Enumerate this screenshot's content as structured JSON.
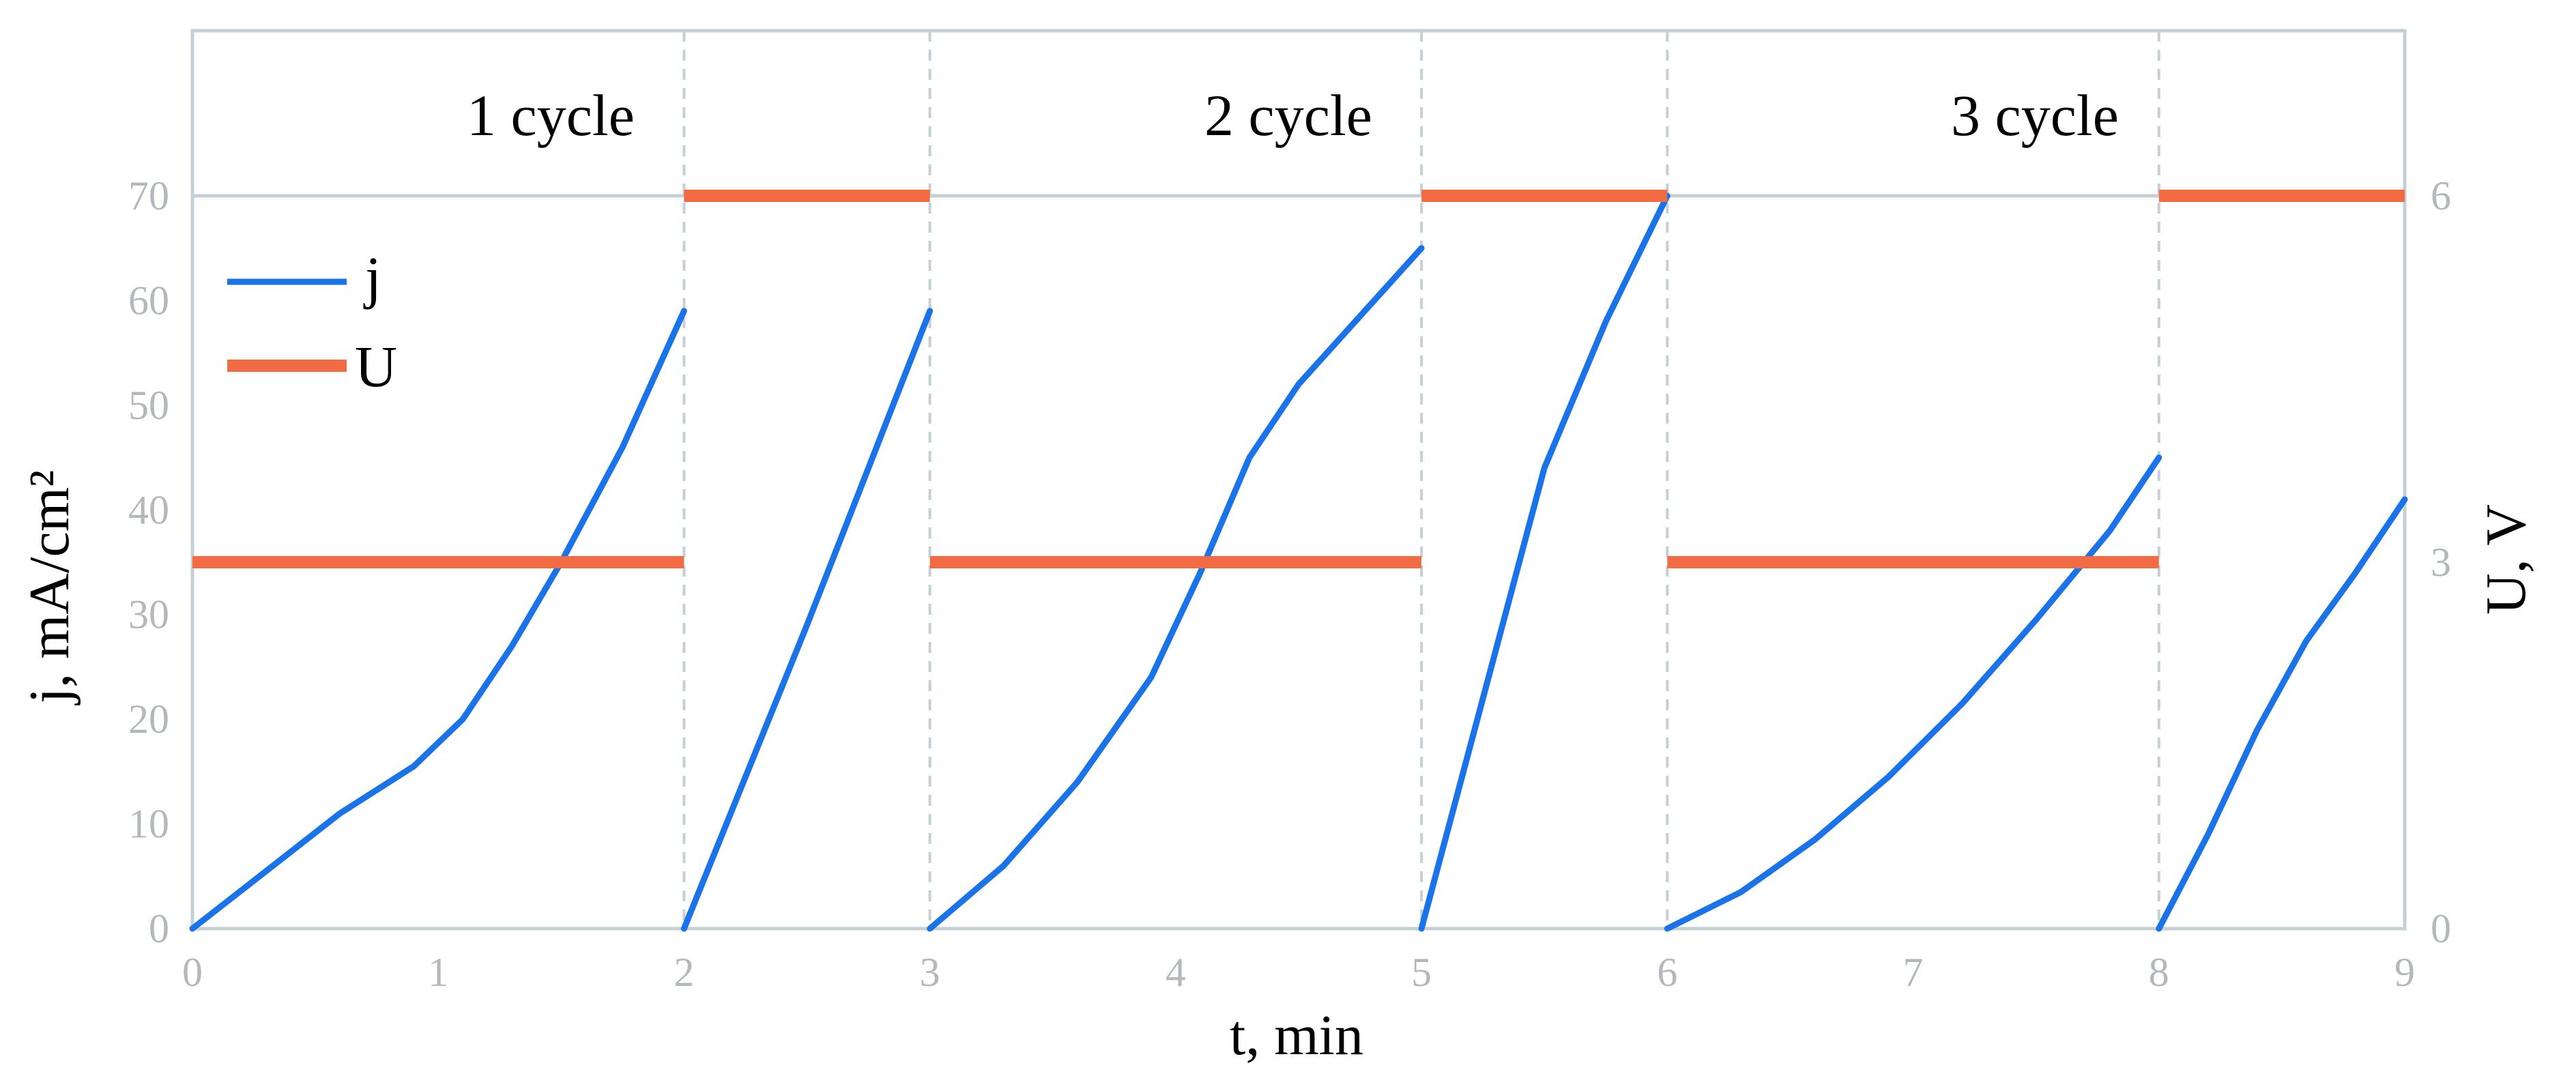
{
  "chart_data": {
    "type": "line",
    "xlabel": "t, min",
    "ylabel": "j, mA/cm²",
    "y2label": "U, V",
    "xlim": [
      0,
      9
    ],
    "ylim": [
      0,
      70
    ],
    "y2lim": [
      0,
      6
    ],
    "x_ticks": [
      "0",
      "1",
      "2",
      "3",
      "4",
      "5",
      "6",
      "7",
      "8",
      "9"
    ],
    "y_ticks": [
      "0",
      "10",
      "20",
      "30",
      "40",
      "50",
      "60",
      "70"
    ],
    "y2_ticks": [
      "0",
      "3",
      "6"
    ],
    "grid": "dashed vertical lines at x = 2, 3, 5, 6, 8",
    "legend_position": "top-left",
    "cycle_labels": [
      "1 cycle",
      "2 cycle",
      "3 cycle"
    ],
    "colors": {
      "j": "#1a73e8",
      "U": "#f26b43",
      "frame": "#c5d0d6",
      "grid": "#c5d0d6"
    },
    "series": [
      {
        "name": "j",
        "axis": "left",
        "segments": [
          [
            [
              0,
              0
            ],
            [
              0.3,
              5.5
            ],
            [
              0.6,
              11
            ],
            [
              0.9,
              15.5
            ],
            [
              1.1,
              20
            ],
            [
              1.3,
              27
            ],
            [
              1.5,
              35
            ],
            [
              1.75,
              46
            ],
            [
              2.0,
              59
            ]
          ],
          [
            [
              2.0,
              0
            ],
            [
              2.5,
              29
            ],
            [
              3.0,
              59
            ]
          ],
          [
            [
              3.0,
              0
            ],
            [
              3.3,
              6
            ],
            [
              3.6,
              14
            ],
            [
              3.9,
              24
            ],
            [
              4.1,
              34
            ],
            [
              4.3,
              45
            ],
            [
              4.5,
              52
            ],
            [
              4.75,
              58.5
            ],
            [
              5.0,
              65
            ]
          ],
          [
            [
              5.0,
              0
            ],
            [
              5.25,
              22
            ],
            [
              5.5,
              44
            ],
            [
              5.75,
              58
            ],
            [
              6.0,
              70
            ]
          ],
          [
            [
              6.0,
              0
            ],
            [
              6.3,
              3.5
            ],
            [
              6.6,
              8.5
            ],
            [
              6.9,
              14.5
            ],
            [
              7.2,
              21.5
            ],
            [
              7.5,
              29.5
            ],
            [
              7.8,
              38
            ],
            [
              8.0,
              45
            ]
          ],
          [
            [
              8.0,
              0
            ],
            [
              8.2,
              9
            ],
            [
              8.4,
              19
            ],
            [
              8.6,
              27.5
            ],
            [
              8.8,
              34
            ],
            [
              9.0,
              41
            ]
          ]
        ]
      },
      {
        "name": "U",
        "axis": "right",
        "segments": [
          [
            [
              0,
              3
            ],
            [
              2,
              3
            ]
          ],
          [
            [
              2,
              6
            ],
            [
              3,
              6
            ]
          ],
          [
            [
              3,
              3
            ],
            [
              5,
              3
            ]
          ],
          [
            [
              5,
              6
            ],
            [
              6,
              6
            ]
          ],
          [
            [
              6,
              3
            ],
            [
              8,
              3
            ]
          ],
          [
            [
              8,
              6
            ],
            [
              9,
              6
            ]
          ]
        ]
      }
    ]
  }
}
